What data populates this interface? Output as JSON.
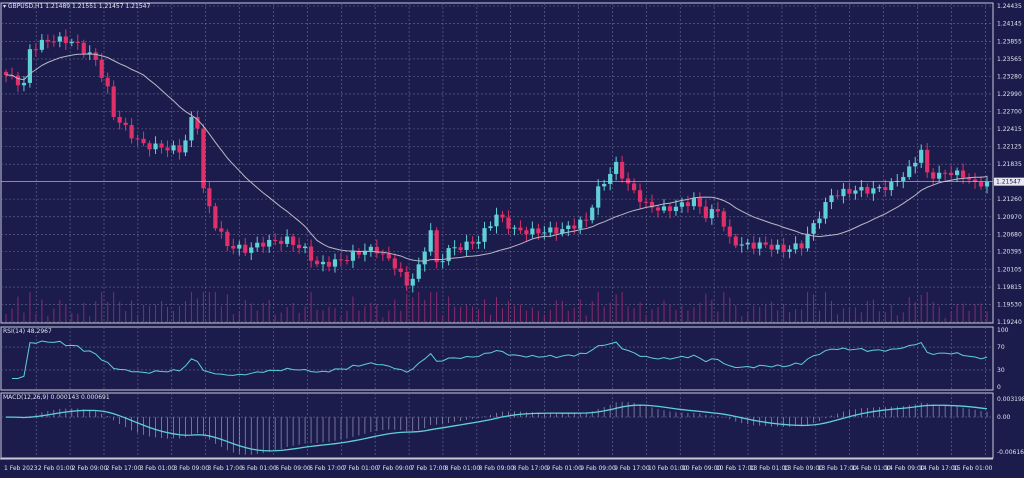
{
  "header": {
    "symbol": "GBPUSD,H1",
    "ohlc": "1.21489 1.21551 1.21457 1.21547"
  },
  "chart_data": [
    {
      "type": "candlestick",
      "title": "GBPUSD,H1",
      "ylim": [
        1.1924,
        1.24435
      ],
      "y_ticks": [
        "1.24435",
        "1.24145",
        "1.23855",
        "1.23565",
        "1.23280",
        "1.22990",
        "1.22700",
        "1.22415",
        "1.22125",
        "1.21835",
        "1.21260",
        "1.20970",
        "1.20680",
        "1.20395",
        "1.20105",
        "1.19815",
        "1.19530",
        "1.19240"
      ],
      "current_price": "1.21547",
      "bars": 165,
      "ma_period": 20,
      "close_keypoints": [
        [
          0,
          1.23301
        ],
        [
          3,
          1.23136
        ],
        [
          4,
          1.23712
        ],
        [
          7,
          1.23876
        ],
        [
          10,
          1.23876
        ],
        [
          12,
          1.23794
        ],
        [
          15,
          1.23547
        ],
        [
          17,
          1.23054
        ],
        [
          18,
          1.22643
        ],
        [
          21,
          1.22314
        ],
        [
          23,
          1.2215
        ],
        [
          27,
          1.22101
        ],
        [
          29,
          1.22068
        ],
        [
          30,
          1.22232
        ],
        [
          31,
          1.22561
        ],
        [
          32,
          1.22479
        ],
        [
          33,
          1.2141
        ],
        [
          35,
          1.20835
        ],
        [
          37,
          1.20506
        ],
        [
          40,
          1.20424
        ],
        [
          43,
          1.20539
        ],
        [
          47,
          1.20588
        ],
        [
          50,
          1.20424
        ],
        [
          52,
          1.20177
        ],
        [
          55,
          1.20226
        ],
        [
          57,
          1.20292
        ],
        [
          60,
          1.20424
        ],
        [
          62,
          1.20424
        ],
        [
          65,
          1.20177
        ],
        [
          67,
          1.19848
        ],
        [
          69,
          1.20128
        ],
        [
          71,
          1.20752
        ],
        [
          72,
          1.20177
        ],
        [
          74,
          1.20424
        ],
        [
          77,
          1.20506
        ],
        [
          79,
          1.20588
        ],
        [
          82,
          1.20999
        ],
        [
          85,
          1.20752
        ],
        [
          88,
          1.20719
        ],
        [
          93,
          1.20752
        ],
        [
          97,
          1.20917
        ],
        [
          99,
          1.2141
        ],
        [
          102,
          1.21821
        ],
        [
          104,
          1.21492
        ],
        [
          107,
          1.21163
        ],
        [
          110,
          1.21081
        ],
        [
          113,
          1.21163
        ],
        [
          115,
          1.21246
        ],
        [
          117,
          1.20999
        ],
        [
          119,
          1.21081
        ],
        [
          121,
          1.20588
        ],
        [
          123,
          1.20506
        ],
        [
          127,
          1.20506
        ],
        [
          130,
          1.20424
        ],
        [
          133,
          1.20506
        ],
        [
          136,
          1.20999
        ],
        [
          138,
          1.21328
        ],
        [
          142,
          1.2141
        ],
        [
          145,
          1.2141
        ],
        [
          148,
          1.21492
        ],
        [
          151,
          1.21739
        ],
        [
          153,
          1.22068
        ],
        [
          154,
          1.21657
        ],
        [
          156,
          1.21657
        ],
        [
          158,
          1.21706
        ],
        [
          161,
          1.21607
        ],
        [
          162,
          1.21492
        ],
        [
          164,
          1.21547
        ]
      ]
    },
    {
      "type": "line",
      "title": "RSI(14) 48.2967",
      "ylim": [
        0,
        100
      ],
      "y_ticks": [
        "100",
        "70",
        "30",
        "0"
      ]
    },
    {
      "type": "histogram+line",
      "title": "MACD(12,26,9) 0.000143 0.000691",
      "y_ticks": [
        "0.003198",
        "0.00",
        "-0.006165"
      ],
      "ylim": [
        -0.006165,
        0.003198
      ]
    }
  ],
  "x_ticks": [
    "1 Feb 2023",
    "2 Feb 01:00",
    "2 Feb 09:00",
    "2 Feb 17:00",
    "3 Feb 01:00",
    "3 Feb 09:00",
    "3 Feb 17:00",
    "6 Feb 01:00",
    "6 Feb 09:00",
    "6 Feb 17:00",
    "7 Feb 01:00",
    "7 Feb 09:00",
    "7 Feb 17:00",
    "8 Feb 01:00",
    "8 Feb 09:00",
    "8 Feb 17:00",
    "9 Feb 01:00",
    "9 Feb 09:00",
    "9 Feb 17:00",
    "10 Feb 01:00",
    "10 Feb 09:00",
    "10 Feb 17:00",
    "13 Feb 01:00",
    "13 Feb 09:00",
    "13 Feb 17:00",
    "14 Feb 01:00",
    "14 Feb 09:00",
    "14 Feb 17:00",
    "15 Feb 01:00"
  ],
  "colors": {
    "bg": "#1b1c4b",
    "bull": "#5fd0d6",
    "bear": "#e0306a",
    "ma": "#b8b8c8",
    "rsi": "#5fd0d6",
    "grid": "#6a6c95"
  }
}
